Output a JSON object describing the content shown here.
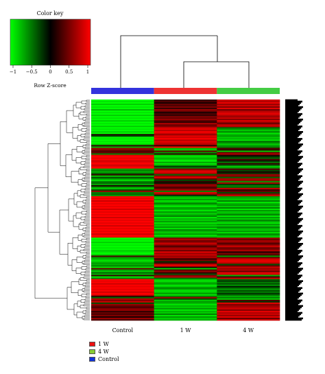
{
  "colors": {
    "low": "#00ff00",
    "mid": "#000000",
    "high": "#ff0000"
  },
  "chart_data": {
    "type": "heatmap",
    "color_key": {
      "title": "Color key",
      "xlabel": "Row Z-score",
      "range": [
        -1,
        1
      ],
      "ticks": [
        "−1",
        "−0.5",
        "0",
        "0.5",
        "1"
      ]
    },
    "columns": [
      "Control",
      "1 W",
      "4 W"
    ],
    "column_colors": [
      "#3333dd",
      "#ee3333",
      "#44cc44"
    ],
    "column_dendrogram": "Control joins the cluster of (1 W, 4 W)",
    "row_dendrogram": true,
    "row_count": 160,
    "values": [
      [
        -1,
        0.2,
        0.8
      ],
      [
        -0.9,
        0.3,
        0.7
      ],
      [
        -1,
        0.1,
        0.9
      ],
      [
        -0.8,
        0.4,
        0.6
      ],
      [
        -1,
        0.3,
        0.8
      ],
      [
        -0.9,
        0.5,
        0.5
      ],
      [
        -1,
        0.2,
        0.9
      ],
      [
        -0.7,
        0.6,
        0.4
      ],
      [
        -1,
        0.4,
        0.7
      ],
      [
        -0.9,
        0.1,
        0.8
      ],
      [
        -1,
        0.3,
        0.9
      ],
      [
        -0.8,
        0.2,
        0.7
      ],
      [
        -1,
        0.5,
        0.6
      ],
      [
        -0.9,
        0.4,
        0.8
      ],
      [
        -1,
        0.6,
        0.5
      ],
      [
        -0.8,
        0.3,
        0.9
      ],
      [
        -1,
        0.2,
        0.6
      ],
      [
        -0.9,
        0.7,
        0.4
      ],
      [
        -1,
        0.4,
        0.8
      ],
      [
        -0.8,
        0.5,
        0.7
      ],
      [
        -1,
        0.8,
        -0.4
      ],
      [
        -0.9,
        0.9,
        -0.6
      ],
      [
        -1,
        0.7,
        -0.8
      ],
      [
        -0.8,
        1,
        -0.5
      ],
      [
        -1,
        0.8,
        -0.9
      ],
      [
        0.1,
        0.6,
        -0.7
      ],
      [
        -0.3,
        0.9,
        -0.6
      ],
      [
        -1,
        0.8,
        -0.8
      ],
      [
        -0.9,
        1,
        -0.7
      ],
      [
        -1,
        0.7,
        -0.9
      ],
      [
        -0.9,
        0.9,
        -0.4
      ],
      [
        -1,
        0.8,
        -0.6
      ],
      [
        -0.8,
        0.7,
        -0.8
      ],
      [
        0.2,
        0.2,
        -0.6
      ],
      [
        -0.7,
        1,
        -0.5
      ],
      [
        0.6,
        -0.7,
        0.3
      ],
      [
        0.5,
        -0.8,
        0.2
      ],
      [
        0.3,
        0.4,
        -0.8
      ],
      [
        0.4,
        -0.6,
        0.4
      ],
      [
        -0.5,
        0.2,
        0.7
      ],
      [
        0.9,
        -0.8,
        0.1
      ],
      [
        1,
        -0.9,
        -0.2
      ],
      [
        0.9,
        -0.7,
        -0.4
      ],
      [
        1,
        -0.8,
        0.3
      ],
      [
        0.8,
        -1,
        -0.1
      ],
      [
        0.9,
        -0.6,
        -0.5
      ],
      [
        1,
        -0.9,
        0.2
      ],
      [
        0.8,
        -0.7,
        -0.3
      ],
      [
        0.9,
        -0.2,
        -0.8
      ],
      [
        1,
        -0.5,
        -0.6
      ],
      [
        -0.6,
        0.5,
        0.3
      ],
      [
        -0.5,
        0.8,
        -0.3
      ],
      [
        -0.7,
        0.9,
        0.1
      ],
      [
        -0.4,
        0.7,
        -0.2
      ],
      [
        0.2,
        -0.4,
        0.6
      ],
      [
        -0.8,
        0.6,
        0.5
      ],
      [
        -0.3,
        0.9,
        -0.4
      ],
      [
        -0.6,
        0.4,
        0.7
      ],
      [
        -0.9,
        -0.3,
        0.6
      ],
      [
        -0.5,
        0.2,
        -0.6
      ],
      [
        -0.4,
        -0.1,
        0.7
      ],
      [
        -0.7,
        0.5,
        -0.2
      ],
      [
        0.1,
        0.6,
        -0.5
      ],
      [
        -0.6,
        0.3,
        -0.4
      ],
      [
        -0.8,
        0.4,
        0.8
      ],
      [
        -0.3,
        0.7,
        0.2
      ],
      [
        0.6,
        -0.5,
        0.4
      ],
      [
        -0.5,
        0.9,
        -0.3
      ],
      [
        -0.4,
        0.6,
        0.5
      ],
      [
        -0.6,
        -0.2,
        0.8
      ],
      [
        1,
        -0.7,
        -0.6
      ],
      [
        0.9,
        -0.8,
        -0.7
      ],
      [
        1,
        -0.6,
        -0.8
      ],
      [
        0.8,
        -0.9,
        -0.5
      ],
      [
        1,
        -0.7,
        -0.9
      ],
      [
        0.9,
        -0.5,
        -0.7
      ],
      [
        1,
        -0.8,
        -0.6
      ],
      [
        0.9,
        -0.9,
        -0.8
      ],
      [
        1,
        -0.6,
        -0.5
      ],
      [
        0.8,
        -0.7,
        -0.9
      ],
      [
        1,
        -0.9,
        -0.6
      ],
      [
        0.9,
        -0.6,
        -0.8
      ],
      [
        1,
        -0.8,
        -0.7
      ],
      [
        0.9,
        -0.7,
        -0.5
      ],
      [
        1,
        -0.5,
        -0.9
      ],
      [
        0.8,
        -0.9,
        -0.6
      ],
      [
        1,
        -0.7,
        -0.8
      ],
      [
        0.9,
        -0.8,
        -0.5
      ],
      [
        1,
        -0.6,
        -0.7
      ],
      [
        0.9,
        -0.9,
        -0.9
      ],
      [
        1,
        -0.7,
        -0.6
      ],
      [
        0.8,
        -0.8,
        -0.8
      ],
      [
        1,
        -0.6,
        -0.5
      ],
      [
        0.9,
        -0.9,
        -0.7
      ],
      [
        1,
        -0.5,
        -0.8
      ],
      [
        0.9,
        -0.7,
        -0.6
      ],
      [
        1,
        -0.8,
        -0.9
      ],
      [
        0.8,
        -0.6,
        -0.5
      ],
      [
        1,
        -0.9,
        -0.7
      ],
      [
        0.9,
        -0.7,
        -0.8
      ],
      [
        -1,
        0.5,
        0.6
      ],
      [
        -0.9,
        0.7,
        0.4
      ],
      [
        -1,
        0.4,
        0.7
      ],
      [
        -0.8,
        0.6,
        0.5
      ],
      [
        -1,
        0.8,
        0.3
      ],
      [
        -0.9,
        0.5,
        0.6
      ],
      [
        -1,
        0.3,
        0.8
      ],
      [
        -0.9,
        0.6,
        0.4
      ],
      [
        -1,
        0.7,
        0.5
      ],
      [
        -0.8,
        0.4,
        0.7
      ],
      [
        -0.9,
        0.9,
        0.1
      ],
      [
        -1,
        0.6,
        0.5
      ],
      [
        -0.8,
        0.8,
        0.3
      ],
      [
        0.3,
        0.6,
        -0.6
      ],
      [
        -0.6,
        0.7,
        0.4
      ],
      [
        -0.7,
        0.2,
        0.8
      ],
      [
        -0.9,
        0.5,
        0.9
      ],
      [
        -0.8,
        -0.2,
        0.9
      ],
      [
        -0.6,
        0.3,
        0.7
      ],
      [
        -0.7,
        0.8,
        -0.3
      ],
      [
        -0.5,
        0.9,
        0.4
      ],
      [
        -0.9,
        0.1,
        0.8
      ],
      [
        0.4,
        -0.8,
        0.6
      ],
      [
        -0.6,
        0.3,
        0.7
      ],
      [
        -0.8,
        0.6,
        0.4
      ],
      [
        -0.4,
        0.2,
        0.9
      ],
      [
        -0.7,
        -0.3,
        0.8
      ],
      [
        0.2,
        0.5,
        -0.7
      ],
      [
        -0.9,
        0.7,
        0.2
      ],
      [
        -0.5,
        -0.4,
        0.8
      ],
      [
        1,
        -0.8,
        -0.4
      ],
      [
        0.9,
        -0.9,
        -0.2
      ],
      [
        1,
        -0.7,
        -0.5
      ],
      [
        0.8,
        -0.6,
        -0.3
      ],
      [
        1,
        -0.9,
        -0.6
      ],
      [
        0.9,
        -0.8,
        -0.1
      ],
      [
        1,
        -0.5,
        -0.4
      ],
      [
        0.9,
        -0.7,
        -0.6
      ],
      [
        1,
        -0.9,
        -0.3
      ],
      [
        0.8,
        -0.8,
        -0.5
      ],
      [
        1,
        -0.6,
        -0.2
      ],
      [
        0.9,
        -0.9,
        -0.4
      ],
      [
        0.2,
        -0.5,
        -0.7
      ],
      [
        -0.4,
        0.6,
        -0.5
      ],
      [
        0.7,
        -0.3,
        -0.8
      ],
      [
        0.5,
        -0.8,
        0.3
      ],
      [
        0.8,
        -0.6,
        -0.2
      ],
      [
        -0.3,
        -0.7,
        0.9
      ],
      [
        0.6,
        -0.9,
        0.5
      ],
      [
        0.4,
        -0.7,
        0.6
      ],
      [
        0.3,
        -0.8,
        0.7
      ],
      [
        0.5,
        -0.6,
        0.8
      ],
      [
        0.6,
        -0.9,
        0.5
      ],
      [
        0.2,
        -0.7,
        0.9
      ],
      [
        0.4,
        -0.8,
        0.7
      ],
      [
        0.3,
        -0.5,
        0.8
      ],
      [
        0.5,
        -0.9,
        0.6
      ],
      [
        0.1,
        -0.6,
        0.9
      ],
      [
        0.6,
        -0.8,
        0.4
      ],
      [
        0.3,
        -0.7,
        0.8
      ]
    ],
    "legend": [
      {
        "label": "1 W",
        "color": "#ee1111"
      },
      {
        "label": "4 W",
        "color": "#88cc33"
      },
      {
        "label": "Control",
        "color": "#1133dd"
      }
    ]
  }
}
